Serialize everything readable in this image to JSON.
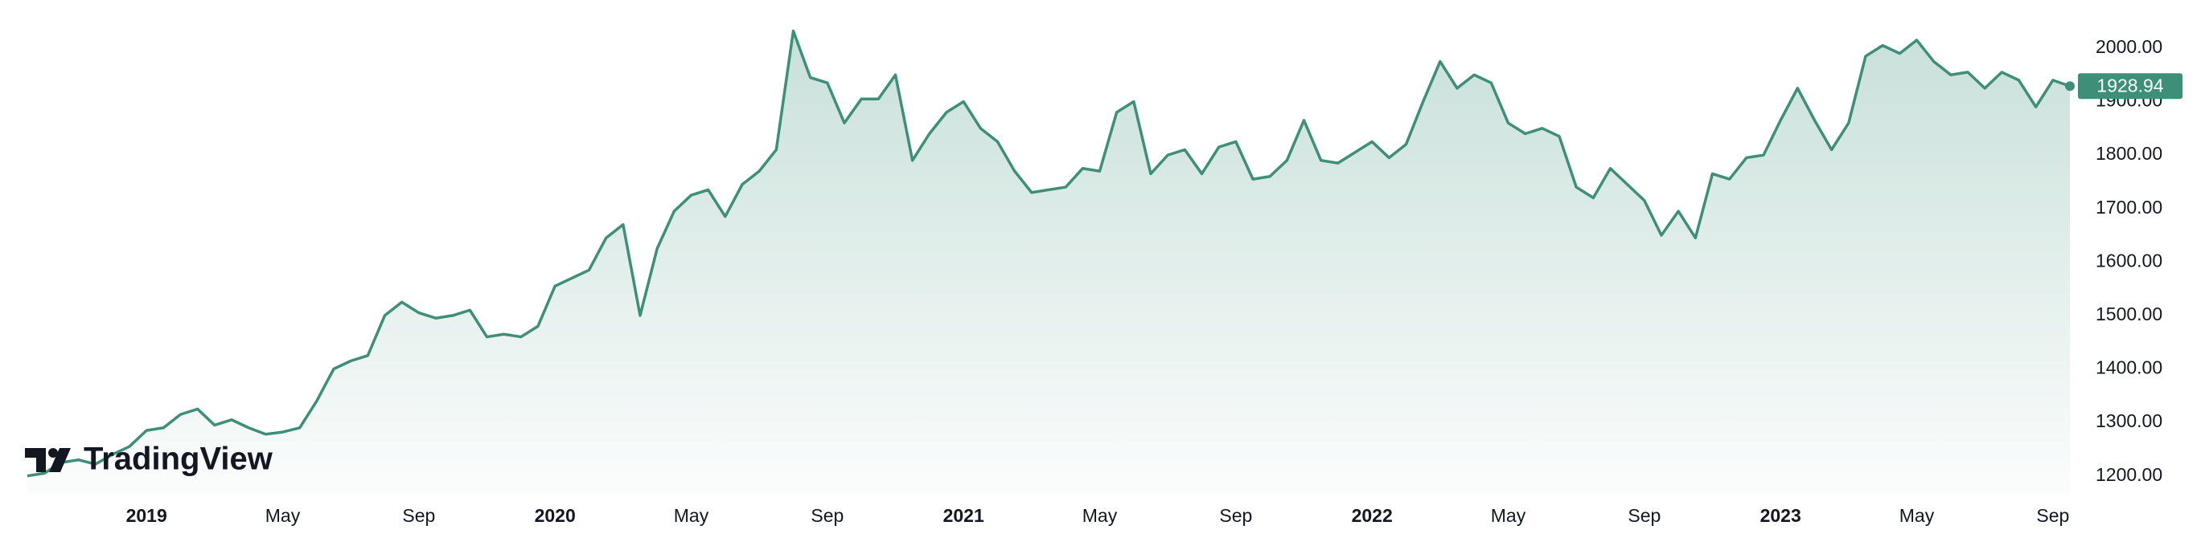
{
  "chart_data": {
    "type": "area",
    "watermark": "TradingView",
    "color": "#3d8f78",
    "categories": [
      null,
      null,
      null,
      null,
      null,
      null,
      null,
      "2019",
      null,
      null,
      null,
      null,
      null,
      null,
      null,
      "May",
      null,
      null,
      null,
      null,
      null,
      null,
      null,
      "Sep",
      null,
      null,
      null,
      null,
      null,
      null,
      null,
      "2020",
      null,
      null,
      null,
      null,
      null,
      null,
      null,
      "May",
      null,
      null,
      null,
      null,
      null,
      null,
      null,
      "Sep",
      null,
      null,
      null,
      null,
      null,
      null,
      null,
      "2021",
      null,
      null,
      null,
      null,
      null,
      null,
      null,
      "May",
      null,
      null,
      null,
      null,
      null,
      null,
      null,
      "Sep",
      null,
      null,
      null,
      null,
      null,
      null,
      null,
      "2022",
      null,
      null,
      null,
      null,
      null,
      null,
      null,
      "May",
      null,
      null,
      null,
      null,
      null,
      null,
      null,
      "Sep",
      null,
      null,
      null,
      null,
      null,
      null,
      null,
      "2023",
      null,
      null,
      null,
      null,
      null,
      null,
      null,
      "May",
      null,
      null,
      null,
      null,
      null,
      null,
      null,
      "Sep",
      null
    ],
    "values": [
      1200,
      1205,
      1225,
      1230,
      1222,
      1240,
      1255,
      1285,
      1290,
      1315,
      1325,
      1295,
      1305,
      1290,
      1278,
      1282,
      1290,
      1340,
      1400,
      1415,
      1425,
      1500,
      1525,
      1505,
      1495,
      1500,
      1510,
      1460,
      1465,
      1460,
      1480,
      1555,
      1570,
      1585,
      1645,
      1670,
      1500,
      1625,
      1695,
      1725,
      1735,
      1685,
      1745,
      1770,
      1810,
      2032,
      1945,
      1935,
      1860,
      1905,
      1905,
      1950,
      1790,
      1840,
      1880,
      1900,
      1850,
      1825,
      1770,
      1730,
      1735,
      1740,
      1775,
      1770,
      1880,
      1900,
      1765,
      1800,
      1810,
      1765,
      1815,
      1825,
      1755,
      1760,
      1790,
      1865,
      1790,
      1785,
      1805,
      1825,
      1795,
      1820,
      1900,
      1975,
      1925,
      1950,
      1935,
      1860,
      1840,
      1850,
      1835,
      1740,
      1720,
      1775,
      1745,
      1715,
      1650,
      1695,
      1645,
      1765,
      1755,
      1795,
      1800,
      1865,
      1925,
      1865,
      1810,
      1860,
      1985,
      2005,
      1990,
      2015,
      1975,
      1950,
      1955,
      1925,
      1955,
      1940,
      1890,
      1940,
      1928.94
    ],
    "ylim": [
      1165,
      2090
    ],
    "yticks": [
      {
        "value": 1200,
        "label": "1200.00"
      },
      {
        "value": 1300,
        "label": "1300.00"
      },
      {
        "value": 1400,
        "label": "1400.00"
      },
      {
        "value": 1500,
        "label": "1500.00"
      },
      {
        "value": 1600,
        "label": "1600.00"
      },
      {
        "value": 1700,
        "label": "1700.00"
      },
      {
        "value": 1800,
        "label": "1800.00"
      },
      {
        "value": 1900,
        "label": "1900.00"
      },
      {
        "value": 2000,
        "label": "2000.00"
      }
    ]
  }
}
